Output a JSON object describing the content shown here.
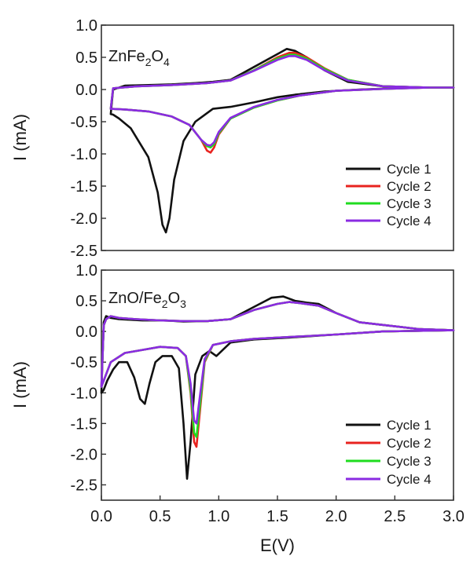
{
  "chart_data": [
    {
      "type": "line",
      "panel_label": {
        "base": "ZnFe",
        "sub1": "2",
        "mid": "O",
        "sub2": "4"
      },
      "xlabel": "",
      "ylabel": "I (mA)",
      "xlim": [
        0,
        3
      ],
      "ylim": [
        -2.5,
        1.0
      ],
      "yticks": [
        "1.0",
        "0.5",
        "0.0",
        "-0.5",
        "-1.0",
        "-1.5",
        "-2.0",
        "-2.5"
      ],
      "legend_position": "bottom-right",
      "series": [
        {
          "name": "Cycle 1",
          "color": "#111111",
          "x": [
            0.08,
            0.1,
            0.15,
            0.25,
            0.4,
            0.48,
            0.52,
            0.55,
            0.58,
            0.62,
            0.7,
            0.8,
            0.95,
            1.1,
            1.3,
            1.5,
            1.65,
            1.9,
            2.2,
            2.5,
            2.8,
            3.0,
            2.8,
            2.4,
            2.1,
            1.9,
            1.75,
            1.65,
            1.58,
            1.5,
            1.3,
            1.2,
            1.1,
            0.95,
            0.8,
            0.6,
            0.4,
            0.2,
            0.1,
            0.08
          ],
          "y": [
            -0.38,
            -0.39,
            -0.45,
            -0.6,
            -1.05,
            -1.6,
            -2.1,
            -2.22,
            -2.0,
            -1.4,
            -0.8,
            -0.5,
            -0.3,
            -0.27,
            -0.2,
            -0.12,
            -0.08,
            -0.03,
            0.0,
            0.02,
            0.03,
            0.03,
            0.03,
            0.05,
            0.12,
            0.3,
            0.5,
            0.6,
            0.63,
            0.55,
            0.35,
            0.25,
            0.15,
            0.12,
            0.1,
            0.08,
            0.07,
            0.06,
            0.0,
            -0.38
          ]
        },
        {
          "name": "Cycle 2",
          "color": "#e8231f",
          "x": [
            0.08,
            0.2,
            0.4,
            0.6,
            0.75,
            0.85,
            0.9,
            0.93,
            0.96,
            1.0,
            1.1,
            1.3,
            1.5,
            1.7,
            2.0,
            2.4,
            2.8,
            3.0,
            2.8,
            2.4,
            2.1,
            1.9,
            1.75,
            1.65,
            1.6,
            1.5,
            1.3,
            1.1,
            0.9,
            0.6,
            0.3,
            0.1,
            0.08
          ],
          "y": [
            -0.3,
            -0.31,
            -0.34,
            -0.42,
            -0.55,
            -0.78,
            -0.95,
            -0.98,
            -0.9,
            -0.7,
            -0.45,
            -0.28,
            -0.17,
            -0.09,
            -0.02,
            0.01,
            0.03,
            0.03,
            0.03,
            0.05,
            0.15,
            0.33,
            0.5,
            0.57,
            0.57,
            0.5,
            0.3,
            0.14,
            0.1,
            0.07,
            0.05,
            0.02,
            -0.3
          ]
        },
        {
          "name": "Cycle 3",
          "color": "#1fdc1f",
          "x": [
            0.08,
            0.2,
            0.4,
            0.6,
            0.75,
            0.85,
            0.9,
            0.93,
            0.96,
            1.0,
            1.1,
            1.3,
            1.5,
            1.7,
            2.0,
            2.4,
            2.8,
            3.0,
            2.8,
            2.4,
            2.1,
            1.9,
            1.75,
            1.65,
            1.6,
            1.5,
            1.3,
            1.1,
            0.9,
            0.6,
            0.3,
            0.1,
            0.08
          ],
          "y": [
            -0.3,
            -0.31,
            -0.34,
            -0.42,
            -0.55,
            -0.78,
            -0.88,
            -0.9,
            -0.85,
            -0.68,
            -0.45,
            -0.28,
            -0.17,
            -0.09,
            -0.02,
            0.01,
            0.03,
            0.03,
            0.03,
            0.05,
            0.15,
            0.32,
            0.48,
            0.54,
            0.54,
            0.48,
            0.3,
            0.14,
            0.1,
            0.07,
            0.05,
            0.02,
            -0.3
          ]
        },
        {
          "name": "Cycle 4",
          "color": "#8a2be2",
          "x": [
            0.08,
            0.2,
            0.4,
            0.6,
            0.75,
            0.85,
            0.9,
            0.93,
            0.96,
            1.0,
            1.1,
            1.3,
            1.5,
            1.7,
            2.0,
            2.4,
            2.8,
            3.0,
            2.8,
            2.4,
            2.1,
            1.9,
            1.75,
            1.65,
            1.6,
            1.5,
            1.3,
            1.1,
            0.9,
            0.6,
            0.3,
            0.1,
            0.08
          ],
          "y": [
            -0.3,
            -0.31,
            -0.34,
            -0.42,
            -0.55,
            -0.78,
            -0.86,
            -0.87,
            -0.82,
            -0.66,
            -0.44,
            -0.27,
            -0.16,
            -0.09,
            -0.02,
            0.01,
            0.03,
            0.03,
            0.03,
            0.05,
            0.14,
            0.3,
            0.46,
            0.52,
            0.52,
            0.46,
            0.29,
            0.14,
            0.1,
            0.07,
            0.05,
            0.02,
            -0.3
          ]
        }
      ]
    },
    {
      "type": "line",
      "panel_label": {
        "base": "ZnO/Fe",
        "sub1": "2",
        "mid": "O",
        "sub2": "3"
      },
      "xlabel": "E(V)",
      "ylabel": "I (mA)",
      "xlim": [
        0,
        3
      ],
      "ylim": [
        -2.75,
        1.0
      ],
      "xticks": [
        "0.0",
        "0.5",
        "1.0",
        "1.5",
        "2.0",
        "2.5",
        "3.0"
      ],
      "yticks": [
        "1.0",
        "0.5",
        "0.0",
        "-0.5",
        "-1.0",
        "-1.5",
        "-2.0",
        "-2.5"
      ],
      "legend_position": "bottom-right",
      "series": [
        {
          "name": "Cycle 1",
          "color": "#111111",
          "x": [
            0.0,
            0.02,
            0.05,
            0.1,
            0.15,
            0.22,
            0.28,
            0.33,
            0.37,
            0.41,
            0.46,
            0.52,
            0.6,
            0.66,
            0.7,
            0.73,
            0.76,
            0.8,
            0.86,
            0.92,
            0.98,
            1.1,
            1.3,
            1.6,
            2.0,
            2.4,
            3.0,
            2.7,
            2.2,
            2.0,
            1.85,
            1.75,
            1.65,
            1.55,
            1.45,
            1.3,
            1.1,
            0.9,
            0.7,
            0.55,
            0.35,
            0.15,
            0.08,
            0.04,
            0.02,
            0.0
          ],
          "y": [
            -1.0,
            -0.95,
            -0.8,
            -0.62,
            -0.5,
            -0.5,
            -0.75,
            -1.1,
            -1.18,
            -0.85,
            -0.5,
            -0.4,
            -0.4,
            -0.6,
            -1.5,
            -2.4,
            -1.8,
            -0.7,
            -0.4,
            -0.32,
            -0.4,
            -0.18,
            -0.13,
            -0.1,
            -0.05,
            0.0,
            0.02,
            0.04,
            0.15,
            0.3,
            0.45,
            0.47,
            0.5,
            0.57,
            0.55,
            0.4,
            0.2,
            0.17,
            0.16,
            0.18,
            0.18,
            0.2,
            0.22,
            0.25,
            0.15,
            -1.0
          ]
        },
        {
          "name": "Cycle 2",
          "color": "#e8231f",
          "x": [
            0.0,
            0.03,
            0.08,
            0.2,
            0.35,
            0.5,
            0.65,
            0.72,
            0.76,
            0.79,
            0.81,
            0.84,
            0.88,
            0.95,
            1.1,
            1.3,
            1.6,
            2.0,
            2.4,
            3.0,
            2.7,
            2.2,
            2.0,
            1.85,
            1.7,
            1.6,
            1.5,
            1.3,
            1.1,
            0.9,
            0.7,
            0.5,
            0.3,
            0.15,
            0.08,
            0.04,
            0.02,
            0.0
          ],
          "y": [
            -0.9,
            -0.75,
            -0.5,
            -0.35,
            -0.3,
            -0.25,
            -0.27,
            -0.4,
            -1.0,
            -1.8,
            -1.88,
            -1.3,
            -0.5,
            -0.22,
            -0.16,
            -0.12,
            -0.09,
            -0.05,
            0.0,
            0.02,
            0.04,
            0.15,
            0.3,
            0.42,
            0.46,
            0.48,
            0.45,
            0.35,
            0.2,
            0.17,
            0.17,
            0.18,
            0.2,
            0.22,
            0.25,
            0.2,
            0.1,
            -0.9
          ]
        },
        {
          "name": "Cycle 3",
          "color": "#1fdc1f",
          "x": [
            0.0,
            0.03,
            0.08,
            0.2,
            0.35,
            0.5,
            0.65,
            0.72,
            0.76,
            0.79,
            0.81,
            0.84,
            0.88,
            0.95,
            1.1,
            1.3,
            1.6,
            2.0,
            2.4,
            3.0,
            2.7,
            2.2,
            2.0,
            1.85,
            1.7,
            1.6,
            1.5,
            1.3,
            1.1,
            0.9,
            0.7,
            0.5,
            0.3,
            0.15,
            0.08,
            0.04,
            0.02,
            0.0
          ],
          "y": [
            -0.9,
            -0.75,
            -0.5,
            -0.35,
            -0.3,
            -0.25,
            -0.27,
            -0.4,
            -0.95,
            -1.65,
            -1.72,
            -1.2,
            -0.48,
            -0.22,
            -0.16,
            -0.12,
            -0.09,
            -0.05,
            0.0,
            0.02,
            0.04,
            0.15,
            0.3,
            0.42,
            0.46,
            0.48,
            0.45,
            0.35,
            0.2,
            0.17,
            0.17,
            0.18,
            0.2,
            0.22,
            0.25,
            0.2,
            0.1,
            -0.9
          ]
        },
        {
          "name": "Cycle 4",
          "color": "#8a2be2",
          "x": [
            0.0,
            0.03,
            0.08,
            0.2,
            0.35,
            0.5,
            0.65,
            0.72,
            0.76,
            0.79,
            0.81,
            0.84,
            0.88,
            0.95,
            1.1,
            1.3,
            1.6,
            2.0,
            2.4,
            3.0,
            2.7,
            2.2,
            2.0,
            1.85,
            1.7,
            1.6,
            1.5,
            1.3,
            1.1,
            0.9,
            0.7,
            0.5,
            0.3,
            0.15,
            0.08,
            0.04,
            0.02,
            0.0
          ],
          "y": [
            -0.9,
            -0.75,
            -0.5,
            -0.35,
            -0.3,
            -0.25,
            -0.27,
            -0.4,
            -0.85,
            -1.45,
            -1.5,
            -1.05,
            -0.45,
            -0.22,
            -0.16,
            -0.12,
            -0.09,
            -0.05,
            0.0,
            0.02,
            0.04,
            0.15,
            0.3,
            0.42,
            0.46,
            0.48,
            0.45,
            0.35,
            0.2,
            0.17,
            0.17,
            0.18,
            0.2,
            0.22,
            0.25,
            0.2,
            0.1,
            -0.9
          ]
        }
      ]
    }
  ]
}
